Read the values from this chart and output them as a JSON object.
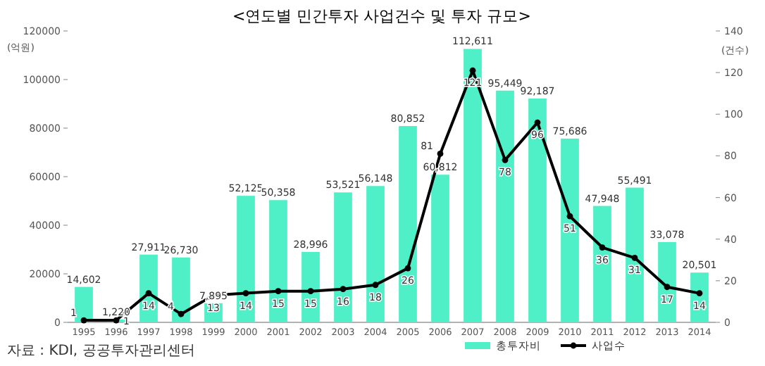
{
  "chart_data": {
    "type": "bar",
    "title": "<연도별 민간투자 사업건수 및 투자 규모>",
    "categories": [
      "1995",
      "1996",
      "1997",
      "1998",
      "1999",
      "2000",
      "2001",
      "2002",
      "2003",
      "2004",
      "2005",
      "2006",
      "2007",
      "2008",
      "2009",
      "2010",
      "2011",
      "2012",
      "2013",
      "2014"
    ],
    "series": [
      {
        "name": "총투자비",
        "color": "#4ff0c8",
        "values": [
          14602,
          1220,
          27911,
          26730,
          7895,
          52125,
          50358,
          28996,
          53521,
          56148,
          80852,
          60812,
          112611,
          95449,
          92187,
          75686,
          47948,
          55491,
          33078,
          20501
        ],
        "value_labels": [
          "14,602",
          "1,220",
          "27,911",
          "26,730",
          "7,895",
          "52,125",
          "50,358",
          "28,996",
          "53,521",
          "56,148",
          "80,852",
          "60,812",
          "112,611",
          "95,449",
          "92,187",
          "75,686",
          "47,948",
          "55,491",
          "33,078",
          "20,501"
        ]
      },
      {
        "name": "사업수",
        "type": "line",
        "axis": "y2",
        "color": "#000000",
        "marker": "circle",
        "values": [
          1,
          1,
          14,
          4,
          13,
          14,
          15,
          15,
          16,
          18,
          26,
          81,
          121,
          78,
          96,
          51,
          36,
          31,
          17,
          14
        ]
      }
    ],
    "ylabel": "(억원)",
    "y2label": "(건수)",
    "ylim": [
      0,
      120000
    ],
    "yticks": [
      0,
      20000,
      40000,
      60000,
      80000,
      100000,
      120000
    ],
    "y2lim": [
      0,
      140
    ],
    "y2ticks": [
      0,
      20,
      40,
      60,
      80,
      100,
      120,
      140
    ],
    "data_labels": true,
    "legend": "bottom right",
    "annotations": [
      "자료 : KDI, 공공투자관리센터"
    ]
  }
}
